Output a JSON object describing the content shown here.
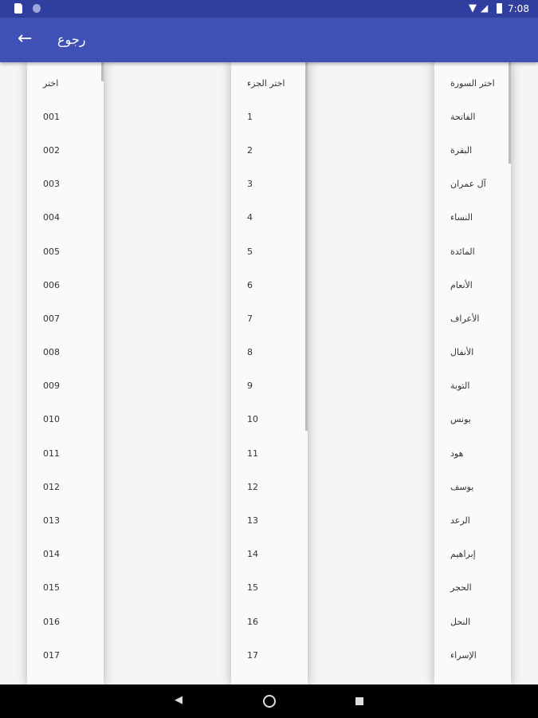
{
  "status": {
    "time": "7:08"
  },
  "appbar": {
    "back_label": "رجوع"
  },
  "lists": [
    {
      "items": [
        "اختر",
        "001",
        "002",
        "003",
        "004",
        "005",
        "006",
        "007",
        "008",
        "009",
        "010",
        "011",
        "012",
        "013",
        "014",
        "015",
        "016",
        "017"
      ]
    },
    {
      "items": [
        "اختر الجزء",
        "1",
        "2",
        "3",
        "4",
        "5",
        "6",
        "7",
        "8",
        "9",
        "10",
        "11",
        "12",
        "13",
        "14",
        "15",
        "16",
        "17"
      ]
    },
    {
      "items": [
        "اختر السورة",
        "الفاتحة",
        "البقرة",
        "آل عمران",
        "النساء",
        "المائدة",
        "الأنعام",
        "الأعراف",
        "الأنفال",
        "التوبة",
        "يونس",
        "هود",
        "يوسف",
        "الرعد",
        "إبراهيم",
        "الحجر",
        "النحل",
        "الإسراء"
      ]
    }
  ]
}
